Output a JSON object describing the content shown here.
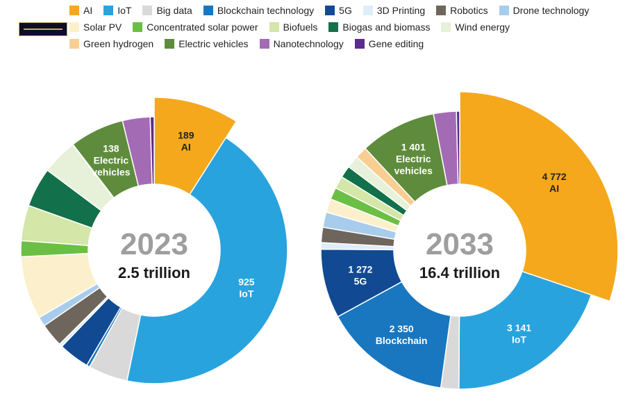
{
  "legend": [
    {
      "label": "AI",
      "color": "#F5A81C"
    },
    {
      "label": "IoT",
      "color": "#29A3DE"
    },
    {
      "label": "Big data",
      "color": "#D9D9D9"
    },
    {
      "label": "Blockchain technology",
      "color": "#1877BF"
    },
    {
      "label": "5G",
      "color": "#114A93"
    },
    {
      "label": "3D Printing",
      "color": "#DDEEF8"
    },
    {
      "label": "Robotics",
      "color": "#6E655C"
    },
    {
      "label": "Drone technology",
      "color": "#A8CCEB"
    },
    {
      "label": "Solar PV",
      "color": "#FCF0CC"
    },
    {
      "label": "Concentrated solar power",
      "color": "#6BBF44"
    },
    {
      "label": "Biofuels",
      "color": "#D4E6A8"
    },
    {
      "label": "Biogas and biomass",
      "color": "#12704A"
    },
    {
      "label": "Wind energy",
      "color": "#E7F1D9"
    },
    {
      "label": "Green hydrogen",
      "color": "#F8CE93"
    },
    {
      "label": "Electric vehicles",
      "color": "#5E8C3C"
    },
    {
      "label": "Nanotechnology",
      "color": "#A46BB5"
    },
    {
      "label": "Gene editing",
      "color": "#5A2D8C"
    }
  ],
  "chart_data": [
    {
      "type": "pie",
      "year": "2023",
      "total": "2.5 trillion",
      "slices": [
        {
          "name": "AI",
          "value": 189,
          "label_value": "189",
          "label_text": "AI",
          "label_dark": true
        },
        {
          "name": "IoT",
          "value": 925,
          "label_value": "925",
          "label_text": "IoT"
        },
        {
          "name": "Big data",
          "value": 100
        },
        {
          "name": "Blockchain technology",
          "value": 8
        },
        {
          "name": "5G",
          "value": 78
        },
        {
          "name": "3D Printing",
          "value": 8
        },
        {
          "name": "Robotics",
          "value": 60
        },
        {
          "name": "Drone technology",
          "value": 24
        },
        {
          "name": "Solar PV",
          "value": 160
        },
        {
          "name": "Concentrated solar power",
          "value": 40
        },
        {
          "name": "Biofuels",
          "value": 90
        },
        {
          "name": "Biogas and biomass",
          "value": 100
        },
        {
          "name": "Wind energy",
          "value": 90
        },
        {
          "name": "Green hydrogen",
          "value": 1
        },
        {
          "name": "Electric vehicles",
          "value": 138,
          "label_value": "138",
          "label_text": "Electric vehicles"
        },
        {
          "name": "Nanotechnology",
          "value": 70
        },
        {
          "name": "Gene editing",
          "value": 10
        }
      ]
    },
    {
      "type": "pie",
      "year": "2033",
      "total": "16.4 trillion",
      "slices": [
        {
          "name": "AI",
          "value": 4772,
          "label_value": "4 772",
          "label_text": "AI",
          "label_dark": true
        },
        {
          "name": "IoT",
          "value": 3141,
          "label_value": "3 141",
          "label_text": "IoT"
        },
        {
          "name": "Big data",
          "value": 330
        },
        {
          "name": "Blockchain technology",
          "value": 2350,
          "label_value": "2 350",
          "label_text": "Blockchain"
        },
        {
          "name": "5G",
          "value": 1272,
          "label_value": "1 272",
          "label_text": "5G"
        },
        {
          "name": "3D Printing",
          "value": 120
        },
        {
          "name": "Robotics",
          "value": 280
        },
        {
          "name": "Drone technology",
          "value": 280
        },
        {
          "name": "Solar PV",
          "value": 250
        },
        {
          "name": "Concentrated solar power",
          "value": 220
        },
        {
          "name": "Biofuels",
          "value": 230
        },
        {
          "name": "Biogas and biomass",
          "value": 220
        },
        {
          "name": "Wind energy",
          "value": 230
        },
        {
          "name": "Green hydrogen",
          "value": 220
        },
        {
          "name": "Electric vehicles",
          "value": 1401,
          "label_value": "1 401",
          "label_text": "Electric vehicles"
        },
        {
          "name": "Nanotechnology",
          "value": 420
        },
        {
          "name": "Gene editing",
          "value": 60
        }
      ]
    }
  ]
}
